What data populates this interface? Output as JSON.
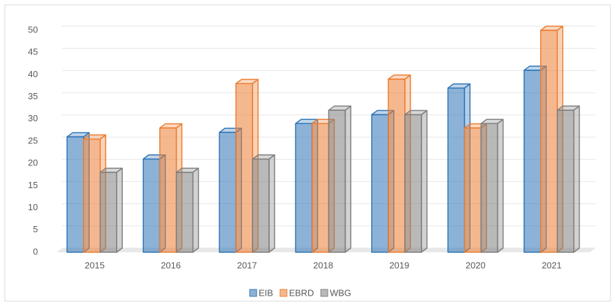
{
  "chart_data": {
    "type": "bar3d",
    "categories": [
      "2015",
      "2016",
      "2017",
      "2018",
      "2019",
      "2020",
      "2021"
    ],
    "series": [
      {
        "name": "EIB",
        "color": "#2e75b6",
        "values": [
          26,
          21,
          27,
          29,
          31,
          37,
          41
        ]
      },
      {
        "name": "EBRD",
        "color": "#ed7d31",
        "values": [
          25.5,
          28,
          38,
          29,
          39,
          28,
          50
        ]
      },
      {
        "name": "WBG",
        "color": "#7f7f7f",
        "values": [
          18,
          18,
          21,
          32,
          31,
          29,
          32
        ]
      }
    ],
    "ylim": [
      0,
      50
    ],
    "yticks": [
      0,
      5,
      10,
      15,
      20,
      25,
      30,
      35,
      40,
      45,
      50
    ],
    "grid": true,
    "legend": "bottom"
  }
}
